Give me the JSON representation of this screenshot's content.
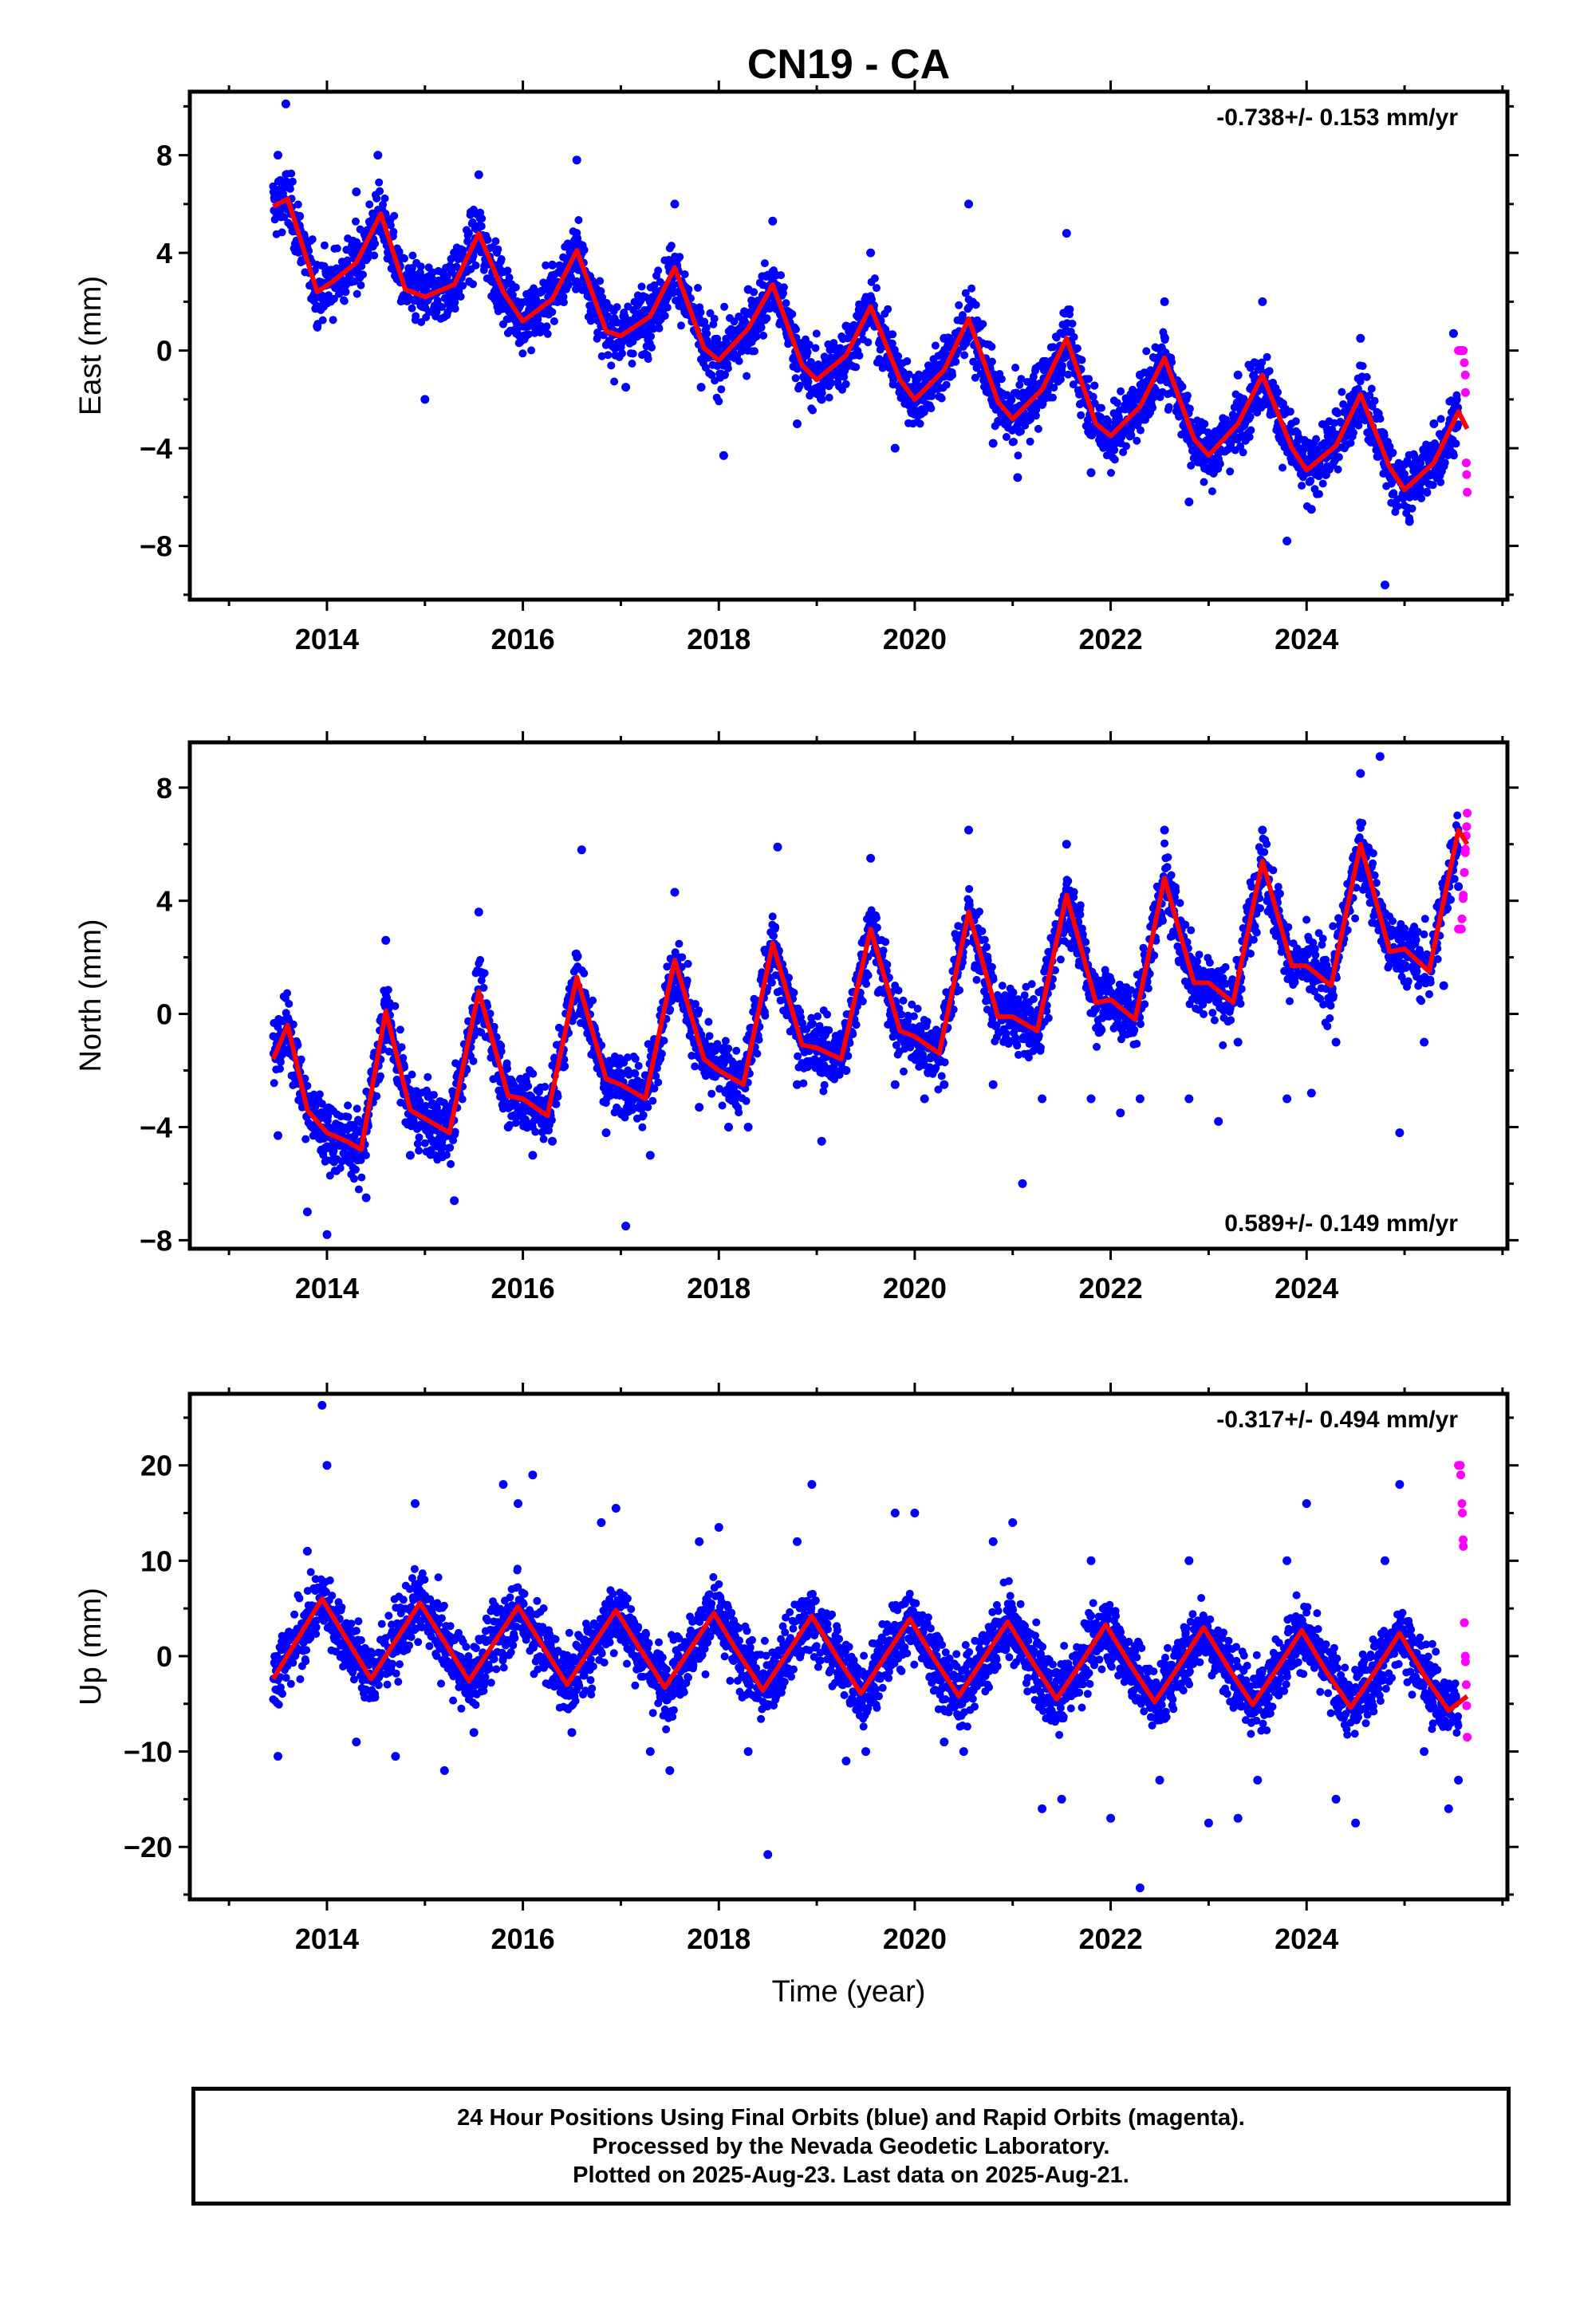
{
  "chart_data": {
    "title": "CN19 - CA",
    "type": "scatter",
    "xlabel": "Time (year)",
    "x_ticks": [
      2014,
      2016,
      2018,
      2020,
      2022,
      2024
    ],
    "xlim": [
      2012.6,
      2026.05
    ],
    "data_span": [
      2013.45,
      2025.64
    ],
    "rapid_span": [
      2025.55,
      2025.64
    ],
    "colors": {
      "final": "#0000ff",
      "rapid": "#ff00ff",
      "fit": "#ff0000"
    },
    "legend": "none",
    "panels": [
      {
        "key": "east",
        "ylabel": "East (mm)",
        "ylim": [
          -10.2,
          10.6
        ],
        "y_ticks": [
          -8,
          -4,
          0,
          4,
          8
        ],
        "rate_text": "-0.738+/- 0.153 mm/yr",
        "rate_position": "top-right",
        "fit": {
          "t": [
            2013.45,
            2013.6,
            2013.75,
            2013.9,
            2014.05,
            2014.3,
            2014.55,
            2014.8,
            2015.0,
            2015.3,
            2015.55,
            2015.8,
            2016.0,
            2016.3,
            2016.55,
            2016.85,
            2017.0,
            2017.3,
            2017.55,
            2017.85,
            2018.0,
            2018.3,
            2018.55,
            2018.85,
            2019.0,
            2019.3,
            2019.55,
            2019.85,
            2020.0,
            2020.3,
            2020.55,
            2020.85,
            2021.0,
            2021.3,
            2021.55,
            2021.85,
            2022.0,
            2022.3,
            2022.55,
            2022.85,
            2023.0,
            2023.3,
            2023.55,
            2023.85,
            2024.0,
            2024.3,
            2024.55,
            2024.85,
            2025.0,
            2025.3,
            2025.55,
            2025.64
          ],
          "y": [
            5.9,
            6.2,
            4.3,
            2.4,
            2.8,
            3.6,
            5.6,
            2.5,
            2.2,
            2.7,
            4.8,
            2.4,
            1.2,
            2.1,
            4.1,
            0.8,
            0.6,
            1.4,
            3.4,
            0.1,
            -0.4,
            0.9,
            2.7,
            -0.6,
            -1.2,
            -0.2,
            1.8,
            -1.2,
            -2.0,
            -0.8,
            1.3,
            -2.1,
            -2.8,
            -1.6,
            0.5,
            -3.0,
            -3.5,
            -2.3,
            -0.3,
            -3.6,
            -4.3,
            -3.0,
            -1.0,
            -4.0,
            -4.9,
            -3.9,
            -1.8,
            -4.8,
            -5.7,
            -4.6,
            -2.5,
            -3.2
          ]
        },
        "series": [
          {
            "name": "Final Orbits",
            "t": [
              2013.5,
              2013.58,
              2013.72,
              2013.9,
              2014.1,
              2014.3,
              2014.52,
              2014.75,
              2015.0,
              2015.3,
              2015.55,
              2015.78,
              2016.05,
              2016.3,
              2016.55,
              2016.8,
              2017.05,
              2017.3,
              2017.55,
              2017.82,
              2018.05,
              2018.3,
              2018.55,
              2018.8,
              2019.05,
              2019.3,
              2019.55,
              2019.8,
              2020.05,
              2020.3,
              2020.55,
              2020.8,
              2021.05,
              2021.3,
              2021.55,
              2021.8,
              2022.05,
              2022.3,
              2022.55,
              2022.8,
              2023.05,
              2023.3,
              2023.55,
              2023.8,
              2024.05,
              2024.3,
              2024.55,
              2024.8,
              2025.05,
              2025.3,
              2025.5
            ],
            "y": [
              8.0,
              10.1,
              5.5,
              1.0,
              3.0,
              6.5,
              8.0,
              2.8,
              -2.0,
              4.0,
              7.2,
              2.0,
              1.5,
              3.5,
              7.8,
              1.0,
              -1.5,
              2.0,
              6.0,
              -1.5,
              -4.3,
              2.5,
              5.3,
              -3.0,
              -2.0,
              1.0,
              4.0,
              -4.0,
              -2.5,
              0.5,
              6.0,
              -3.8,
              -5.2,
              -2.0,
              4.8,
              -5.0,
              -3.5,
              -1.0,
              2.0,
              -6.2,
              -5.0,
              -1.0,
              2.0,
              -7.8,
              -6.5,
              -2.5,
              0.5,
              -9.6,
              -7.0,
              -3.0,
              0.7
            ]
          },
          {
            "name": "Rapid Orbits",
            "t": [
              2025.6,
              2025.62,
              2025.63,
              2025.64
            ],
            "y": [
              0.0,
              -1.0,
              -4.6,
              -5.8
            ]
          }
        ]
      },
      {
        "key": "north",
        "ylabel": "North (mm)",
        "ylim": [
          -8.3,
          9.6
        ],
        "y_ticks": [
          -8,
          -4,
          0,
          4,
          8
        ],
        "rate_text": "0.589+/- 0.149 mm/yr",
        "rate_position": "bottom-right",
        "fit": {
          "t": [
            2013.45,
            2013.6,
            2013.8,
            2014.0,
            2014.2,
            2014.35,
            2014.6,
            2014.85,
            2015.0,
            2015.25,
            2015.55,
            2015.85,
            2016.0,
            2016.25,
            2016.55,
            2016.85,
            2017.0,
            2017.25,
            2017.55,
            2017.85,
            2018.0,
            2018.25,
            2018.55,
            2018.85,
            2019.0,
            2019.25,
            2019.55,
            2019.85,
            2020.0,
            2020.25,
            2020.55,
            2020.85,
            2021.0,
            2021.25,
            2021.55,
            2021.85,
            2022.0,
            2022.25,
            2022.55,
            2022.85,
            2023.0,
            2023.25,
            2023.55,
            2023.85,
            2024.0,
            2024.25,
            2024.55,
            2024.85,
            2025.0,
            2025.25,
            2025.55,
            2025.64
          ],
          "y": [
            -1.6,
            -0.4,
            -3.4,
            -4.2,
            -4.5,
            -4.8,
            0.1,
            -3.4,
            -3.7,
            -4.2,
            0.8,
            -2.9,
            -3.0,
            -3.6,
            1.3,
            -2.3,
            -2.5,
            -3.0,
            1.9,
            -1.6,
            -2.0,
            -2.5,
            2.5,
            -1.1,
            -1.2,
            -1.6,
            3.0,
            -0.6,
            -0.8,
            -1.4,
            3.6,
            -0.1,
            -0.1,
            -0.6,
            4.2,
            0.4,
            0.5,
            -0.2,
            4.8,
            1.1,
            1.1,
            0.4,
            5.4,
            1.7,
            1.7,
            1.0,
            6.0,
            2.2,
            2.3,
            1.5,
            6.5,
            6.0
          ]
        },
        "series": [
          {
            "name": "Final Orbits",
            "t": [
              2013.5,
              2013.65,
              2013.8,
              2014.0,
              2014.2,
              2014.4,
              2014.6,
              2014.85,
              2015.1,
              2015.3,
              2015.55,
              2015.85,
              2016.1,
              2016.3,
              2016.6,
              2016.85,
              2017.05,
              2017.3,
              2017.55,
              2017.8,
              2018.1,
              2018.3,
              2018.6,
              2018.8,
              2019.05,
              2019.3,
              2019.55,
              2019.8,
              2020.1,
              2020.3,
              2020.55,
              2020.8,
              2021.1,
              2021.3,
              2021.55,
              2021.8,
              2022.1,
              2022.3,
              2022.55,
              2022.8,
              2023.1,
              2023.3,
              2023.55,
              2023.8,
              2024.05,
              2024.3,
              2024.55,
              2024.75,
              2024.95,
              2025.2,
              2025.4,
              2025.55
            ],
            "y": [
              -4.3,
              -1.0,
              -7.0,
              -7.8,
              -5.0,
              -6.5,
              2.6,
              -5.0,
              -4.5,
              -6.6,
              3.6,
              -4.0,
              -5.0,
              -4.5,
              5.8,
              -4.2,
              -7.5,
              -5.0,
              4.3,
              -3.3,
              -4.0,
              -4.0,
              5.9,
              -2.5,
              -4.5,
              -2.0,
              5.5,
              -2.5,
              -3.0,
              -2.5,
              6.5,
              -2.5,
              -6.0,
              -3.0,
              6.0,
              -3.0,
              -3.5,
              -3.0,
              6.5,
              -3.0,
              -3.8,
              -1.0,
              6.5,
              -3.0,
              -2.8,
              -1.0,
              8.5,
              9.1,
              -4.2,
              -1.0,
              1.0,
              4.5
            ]
          },
          {
            "name": "Rapid Orbits",
            "t": [
              2025.58,
              2025.6,
              2025.61,
              2025.62,
              2025.63,
              2025.64
            ],
            "y": [
              3.0,
              4.2,
              5.0,
              5.7,
              6.3,
              7.1
            ]
          }
        ]
      },
      {
        "key": "up",
        "ylabel": "Up (mm)",
        "ylim": [
          -25.5,
          27.5
        ],
        "y_ticks": [
          -20,
          -10,
          0,
          10,
          20
        ],
        "rate_text": "-0.317+/- 0.494 mm/yr",
        "rate_position": "top-right",
        "fit": {
          "t": [
            2013.45,
            2013.7,
            2013.95,
            2014.2,
            2014.45,
            2014.7,
            2014.95,
            2015.2,
            2015.45,
            2015.7,
            2015.95,
            2016.2,
            2016.45,
            2016.7,
            2016.95,
            2017.2,
            2017.45,
            2017.7,
            2017.95,
            2018.2,
            2018.45,
            2018.7,
            2018.95,
            2019.2,
            2019.45,
            2019.7,
            2019.95,
            2020.2,
            2020.45,
            2020.7,
            2020.95,
            2021.2,
            2021.45,
            2021.7,
            2021.95,
            2022.2,
            2022.45,
            2022.7,
            2022.95,
            2023.2,
            2023.45,
            2023.7,
            2023.95,
            2024.2,
            2024.45,
            2024.7,
            2024.95,
            2025.2,
            2025.45,
            2025.64
          ],
          "y": [
            -2.4,
            1.8,
            6.0,
            1.8,
            -2.4,
            1.6,
            5.6,
            1.5,
            -2.6,
            1.3,
            5.2,
            1.1,
            -3.0,
            0.9,
            4.8,
            0.7,
            -3.3,
            0.6,
            4.5,
            0.3,
            -3.6,
            0.3,
            4.2,
            0.0,
            -3.9,
            0.0,
            3.9,
            -0.3,
            -4.2,
            -0.3,
            3.6,
            -0.6,
            -4.5,
            -0.7,
            3.3,
            -0.9,
            -4.8,
            -1.0,
            3.0,
            -1.2,
            -5.1,
            -1.3,
            2.7,
            -1.6,
            -5.4,
            -1.6,
            2.4,
            -2.0,
            -5.7,
            -4.2
          ]
        },
        "series": [
          {
            "name": "Final Orbits",
            "t": [
              2013.5,
              2013.8,
              2013.95,
              2014.0,
              2014.3,
              2014.7,
              2014.9,
              2015.2,
              2015.5,
              2015.8,
              2015.95,
              2016.1,
              2016.5,
              2016.8,
              2016.95,
              2017.3,
              2017.5,
              2017.8,
              2018.0,
              2018.3,
              2018.5,
              2018.8,
              2018.95,
              2019.3,
              2019.5,
              2019.8,
              2020.0,
              2020.3,
              2020.5,
              2020.8,
              2021.0,
              2021.3,
              2021.5,
              2021.8,
              2022.0,
              2022.3,
              2022.5,
              2022.8,
              2023.0,
              2023.3,
              2023.5,
              2023.8,
              2024.0,
              2024.3,
              2024.5,
              2024.8,
              2024.95,
              2025.2,
              2025.45,
              2025.55
            ],
            "y": [
              -10.5,
              11.0,
              26.3,
              20.0,
              -9.0,
              -10.5,
              16.0,
              -12.0,
              -8.0,
              18.0,
              16.0,
              19.0,
              -8.0,
              14.0,
              15.5,
              -10.0,
              -12.0,
              12.0,
              13.5,
              -10.0,
              -20.8,
              12.0,
              18.0,
              -11.0,
              -10.0,
              15.0,
              15.0,
              -9.0,
              -10.0,
              12.0,
              14.0,
              -16.0,
              -15.0,
              10.0,
              -17.0,
              -24.3,
              -13.0,
              10.0,
              -17.5,
              -17.0,
              -13.0,
              10.0,
              16.0,
              -15.0,
              -17.5,
              10.0,
              18.0,
              -10.0,
              -16.0,
              -13.0
            ]
          },
          {
            "name": "Rapid Orbits",
            "t": [
              2025.57,
              2025.59,
              2025.6,
              2025.61,
              2025.62,
              2025.63,
              2025.64
            ],
            "y": [
              20.0,
              15.0,
              11.5,
              3.5,
              0.0,
              -3.0,
              -8.5
            ]
          }
        ]
      }
    ]
  },
  "footer": {
    "line1": "24 Hour Positions Using Final Orbits (blue) and Rapid Orbits (magenta).",
    "line2": "Processed by the Nevada Geodetic Laboratory.",
    "line3": "Plotted on 2025-Aug-23. Last data on 2025-Aug-21."
  }
}
